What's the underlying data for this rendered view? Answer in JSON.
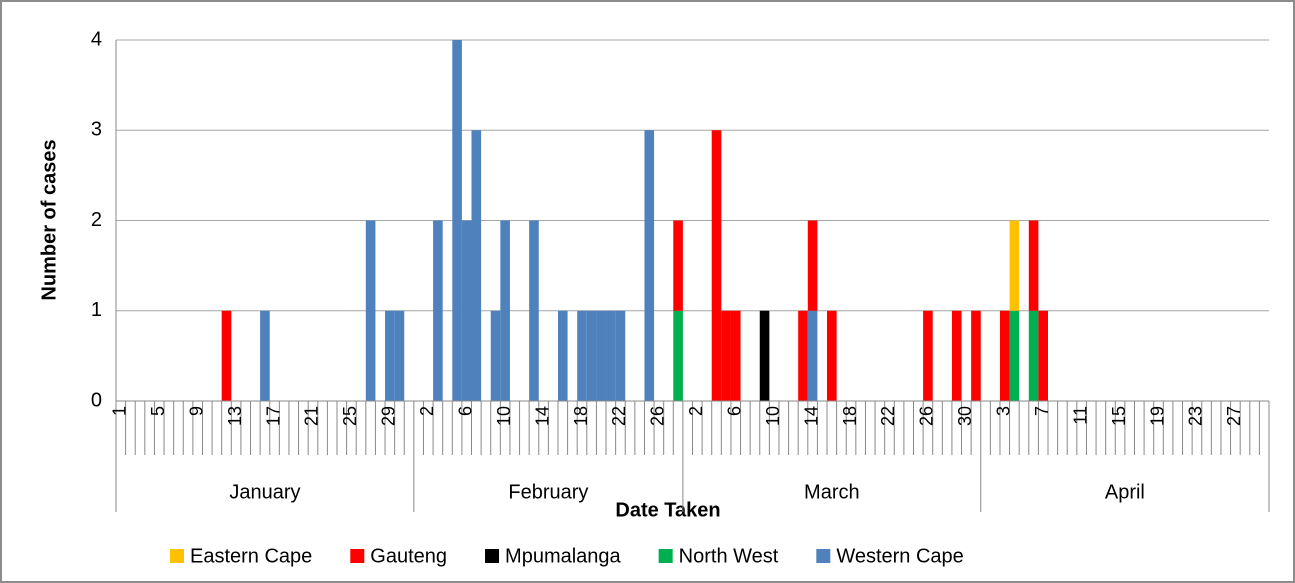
{
  "chart_data": {
    "type": "stacked-bar",
    "x_label": "Date Taken",
    "y_label": "Number of cases",
    "ylim": [
      0,
      4
    ],
    "yticks": [
      0,
      1,
      2,
      3,
      4
    ],
    "grid": true,
    "legend": "bottom",
    "months": [
      {
        "label": "January",
        "days": 31
      },
      {
        "label": "February",
        "days": 28
      },
      {
        "label": "March",
        "days": 31
      },
      {
        "label": "April",
        "days": 30
      }
    ],
    "categories": [
      1,
      null,
      null,
      null,
      5,
      null,
      null,
      null,
      9,
      null,
      null,
      null,
      13,
      null,
      null,
      null,
      17,
      null,
      null,
      null,
      21,
      null,
      null,
      null,
      25,
      null,
      null,
      null,
      29,
      null,
      null,
      null,
      2,
      null,
      null,
      null,
      6,
      null,
      null,
      null,
      10,
      null,
      null,
      null,
      14,
      null,
      null,
      null,
      18,
      null,
      null,
      null,
      22,
      null,
      null,
      null,
      26,
      null,
      null,
      null,
      2,
      null,
      null,
      null,
      6,
      null,
      null,
      null,
      10,
      null,
      null,
      null,
      14,
      null,
      null,
      null,
      18,
      null,
      null,
      null,
      22,
      null,
      null,
      null,
      26,
      null,
      null,
      null,
      30,
      null,
      null,
      null,
      3,
      null,
      null,
      null,
      7,
      null,
      null,
      null,
      11,
      null,
      null,
      null,
      15,
      null,
      null,
      null,
      19,
      null,
      null,
      null,
      23,
      null,
      null,
      null,
      27,
      null,
      null,
      null
    ],
    "series": [
      {
        "name": "Eastern Cape",
        "color": "#ffc000",
        "values": [
          0,
          0,
          0,
          0,
          0,
          0,
          0,
          0,
          0,
          0,
          0,
          0,
          0,
          0,
          0,
          0,
          0,
          0,
          0,
          0,
          0,
          0,
          0,
          0,
          0,
          0,
          0,
          0,
          0,
          0,
          0,
          0,
          0,
          0,
          0,
          0,
          0,
          0,
          0,
          0,
          0,
          0,
          0,
          0,
          0,
          0,
          0,
          0,
          0,
          0,
          0,
          0,
          0,
          0,
          0,
          0,
          0,
          0,
          0,
          0,
          0,
          0,
          0,
          0,
          0,
          0,
          0,
          0,
          0,
          0,
          0,
          0,
          0,
          0,
          0,
          0,
          0,
          0,
          0,
          0,
          0,
          0,
          0,
          0,
          0,
          0,
          0,
          0,
          0,
          0,
          0,
          0,
          0,
          1,
          0,
          0,
          0,
          0,
          0,
          0,
          0,
          0,
          0,
          0,
          0,
          0,
          0,
          0,
          0,
          0,
          0,
          0,
          0,
          0,
          0,
          0,
          0,
          0,
          0,
          0
        ]
      },
      {
        "name": "Gauteng",
        "color": "#ff0000",
        "values": [
          0,
          0,
          0,
          0,
          0,
          0,
          0,
          0,
          0,
          0,
          0,
          1,
          0,
          0,
          0,
          0,
          0,
          0,
          0,
          0,
          0,
          0,
          0,
          0,
          0,
          0,
          0,
          0,
          0,
          0,
          0,
          0,
          0,
          0,
          0,
          0,
          0,
          0,
          0,
          0,
          0,
          0,
          0,
          0,
          0,
          0,
          0,
          0,
          0,
          0,
          0,
          0,
          0,
          0,
          0,
          0,
          0,
          0,
          1,
          0,
          0,
          0,
          3,
          1,
          1,
          0,
          0,
          0,
          0,
          0,
          0,
          1,
          1,
          0,
          1,
          0,
          0,
          0,
          0,
          0,
          0,
          0,
          0,
          0,
          1,
          0,
          0,
          1,
          0,
          1,
          0,
          0,
          1,
          0,
          0,
          1,
          1,
          0,
          0,
          0,
          0,
          0,
          0,
          0,
          0,
          0,
          0,
          0,
          0,
          0,
          0,
          0,
          0,
          0,
          0,
          0,
          0,
          0,
          0,
          0
        ]
      },
      {
        "name": "Mpumalanga",
        "color": "#000000",
        "values": [
          0,
          0,
          0,
          0,
          0,
          0,
          0,
          0,
          0,
          0,
          0,
          0,
          0,
          0,
          0,
          0,
          0,
          0,
          0,
          0,
          0,
          0,
          0,
          0,
          0,
          0,
          0,
          0,
          0,
          0,
          0,
          0,
          0,
          0,
          0,
          0,
          0,
          0,
          0,
          0,
          0,
          0,
          0,
          0,
          0,
          0,
          0,
          0,
          0,
          0,
          0,
          0,
          0,
          0,
          0,
          0,
          0,
          0,
          0,
          0,
          0,
          0,
          0,
          0,
          0,
          0,
          0,
          1,
          0,
          0,
          0,
          0,
          0,
          0,
          0,
          0,
          0,
          0,
          0,
          0,
          0,
          0,
          0,
          0,
          0,
          0,
          0,
          0,
          0,
          0,
          0,
          0,
          0,
          0,
          0,
          0,
          0,
          0,
          0,
          0,
          0,
          0,
          0,
          0,
          0,
          0,
          0,
          0,
          0,
          0,
          0,
          0,
          0,
          0,
          0,
          0,
          0,
          0,
          0,
          0
        ]
      },
      {
        "name": "North West",
        "color": "#00b050",
        "values": [
          0,
          0,
          0,
          0,
          0,
          0,
          0,
          0,
          0,
          0,
          0,
          0,
          0,
          0,
          0,
          0,
          0,
          0,
          0,
          0,
          0,
          0,
          0,
          0,
          0,
          0,
          0,
          0,
          0,
          0,
          0,
          0,
          0,
          0,
          0,
          0,
          0,
          0,
          0,
          0,
          0,
          0,
          0,
          0,
          0,
          0,
          0,
          0,
          0,
          0,
          0,
          0,
          0,
          0,
          0,
          0,
          0,
          0,
          1,
          0,
          0,
          0,
          0,
          0,
          0,
          0,
          0,
          0,
          0,
          0,
          0,
          0,
          0,
          0,
          0,
          0,
          0,
          0,
          0,
          0,
          0,
          0,
          0,
          0,
          0,
          0,
          0,
          0,
          0,
          0,
          0,
          0,
          0,
          1,
          0,
          1,
          0,
          0,
          0,
          0,
          0,
          0,
          0,
          0,
          0,
          0,
          0,
          0,
          0,
          0,
          0,
          0,
          0,
          0,
          0,
          0,
          0,
          0,
          0,
          0
        ]
      },
      {
        "name": "Western Cape",
        "color": "#4f81bd",
        "values": [
          0,
          0,
          0,
          0,
          0,
          0,
          0,
          0,
          0,
          0,
          0,
          0,
          0,
          0,
          0,
          1,
          0,
          0,
          0,
          0,
          0,
          0,
          0,
          0,
          0,
          0,
          2,
          0,
          1,
          1,
          0,
          0,
          0,
          2,
          0,
          4,
          2,
          3,
          0,
          1,
          2,
          0,
          0,
          2,
          0,
          0,
          1,
          0,
          1,
          1,
          1,
          1,
          1,
          0,
          0,
          3,
          0,
          0,
          0,
          0,
          0,
          0,
          0,
          0,
          0,
          0,
          0,
          0,
          0,
          0,
          0,
          0,
          1,
          0,
          0,
          0,
          0,
          0,
          0,
          0,
          0,
          0,
          0,
          0,
          0,
          0,
          0,
          0,
          0,
          0,
          0,
          0,
          0,
          0,
          0,
          0,
          0,
          0,
          0,
          0,
          0,
          0,
          0,
          0,
          0,
          0,
          0,
          0,
          0,
          0,
          0,
          0,
          0,
          0,
          0,
          0,
          0,
          0,
          0,
          0
        ]
      }
    ]
  }
}
